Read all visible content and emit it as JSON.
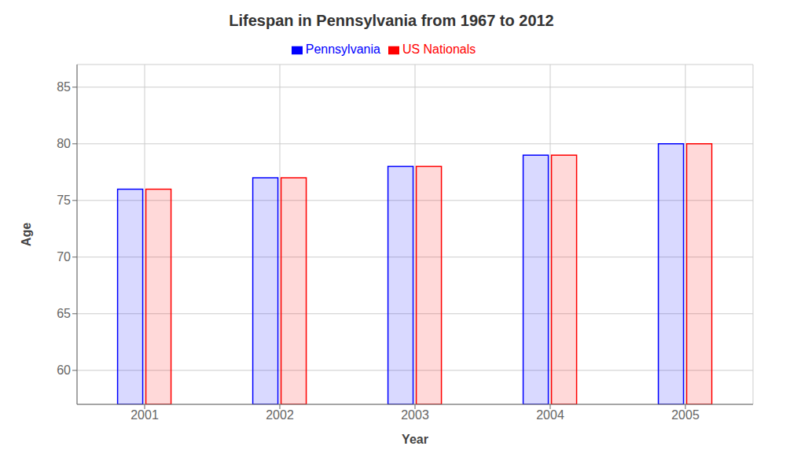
{
  "chart_data": {
    "type": "bar",
    "title": "Lifespan in Pennsylvania from 1967 to 2012",
    "x_label": "Year",
    "y_label": "Age",
    "categories": [
      "2001",
      "2002",
      "2003",
      "2004",
      "2005"
    ],
    "series": [
      {
        "name": "Pennsylvania",
        "color": "#0000ff",
        "values": [
          76,
          77,
          78,
          79,
          80
        ]
      },
      {
        "name": "US Nationals",
        "color": "#ff0000",
        "values": [
          76,
          77,
          78,
          79,
          80
        ]
      }
    ],
    "ylim": [
      57,
      87
    ],
    "yticks": [
      60,
      65,
      70,
      75,
      80,
      85
    ],
    "grid": true,
    "legend": "top"
  }
}
